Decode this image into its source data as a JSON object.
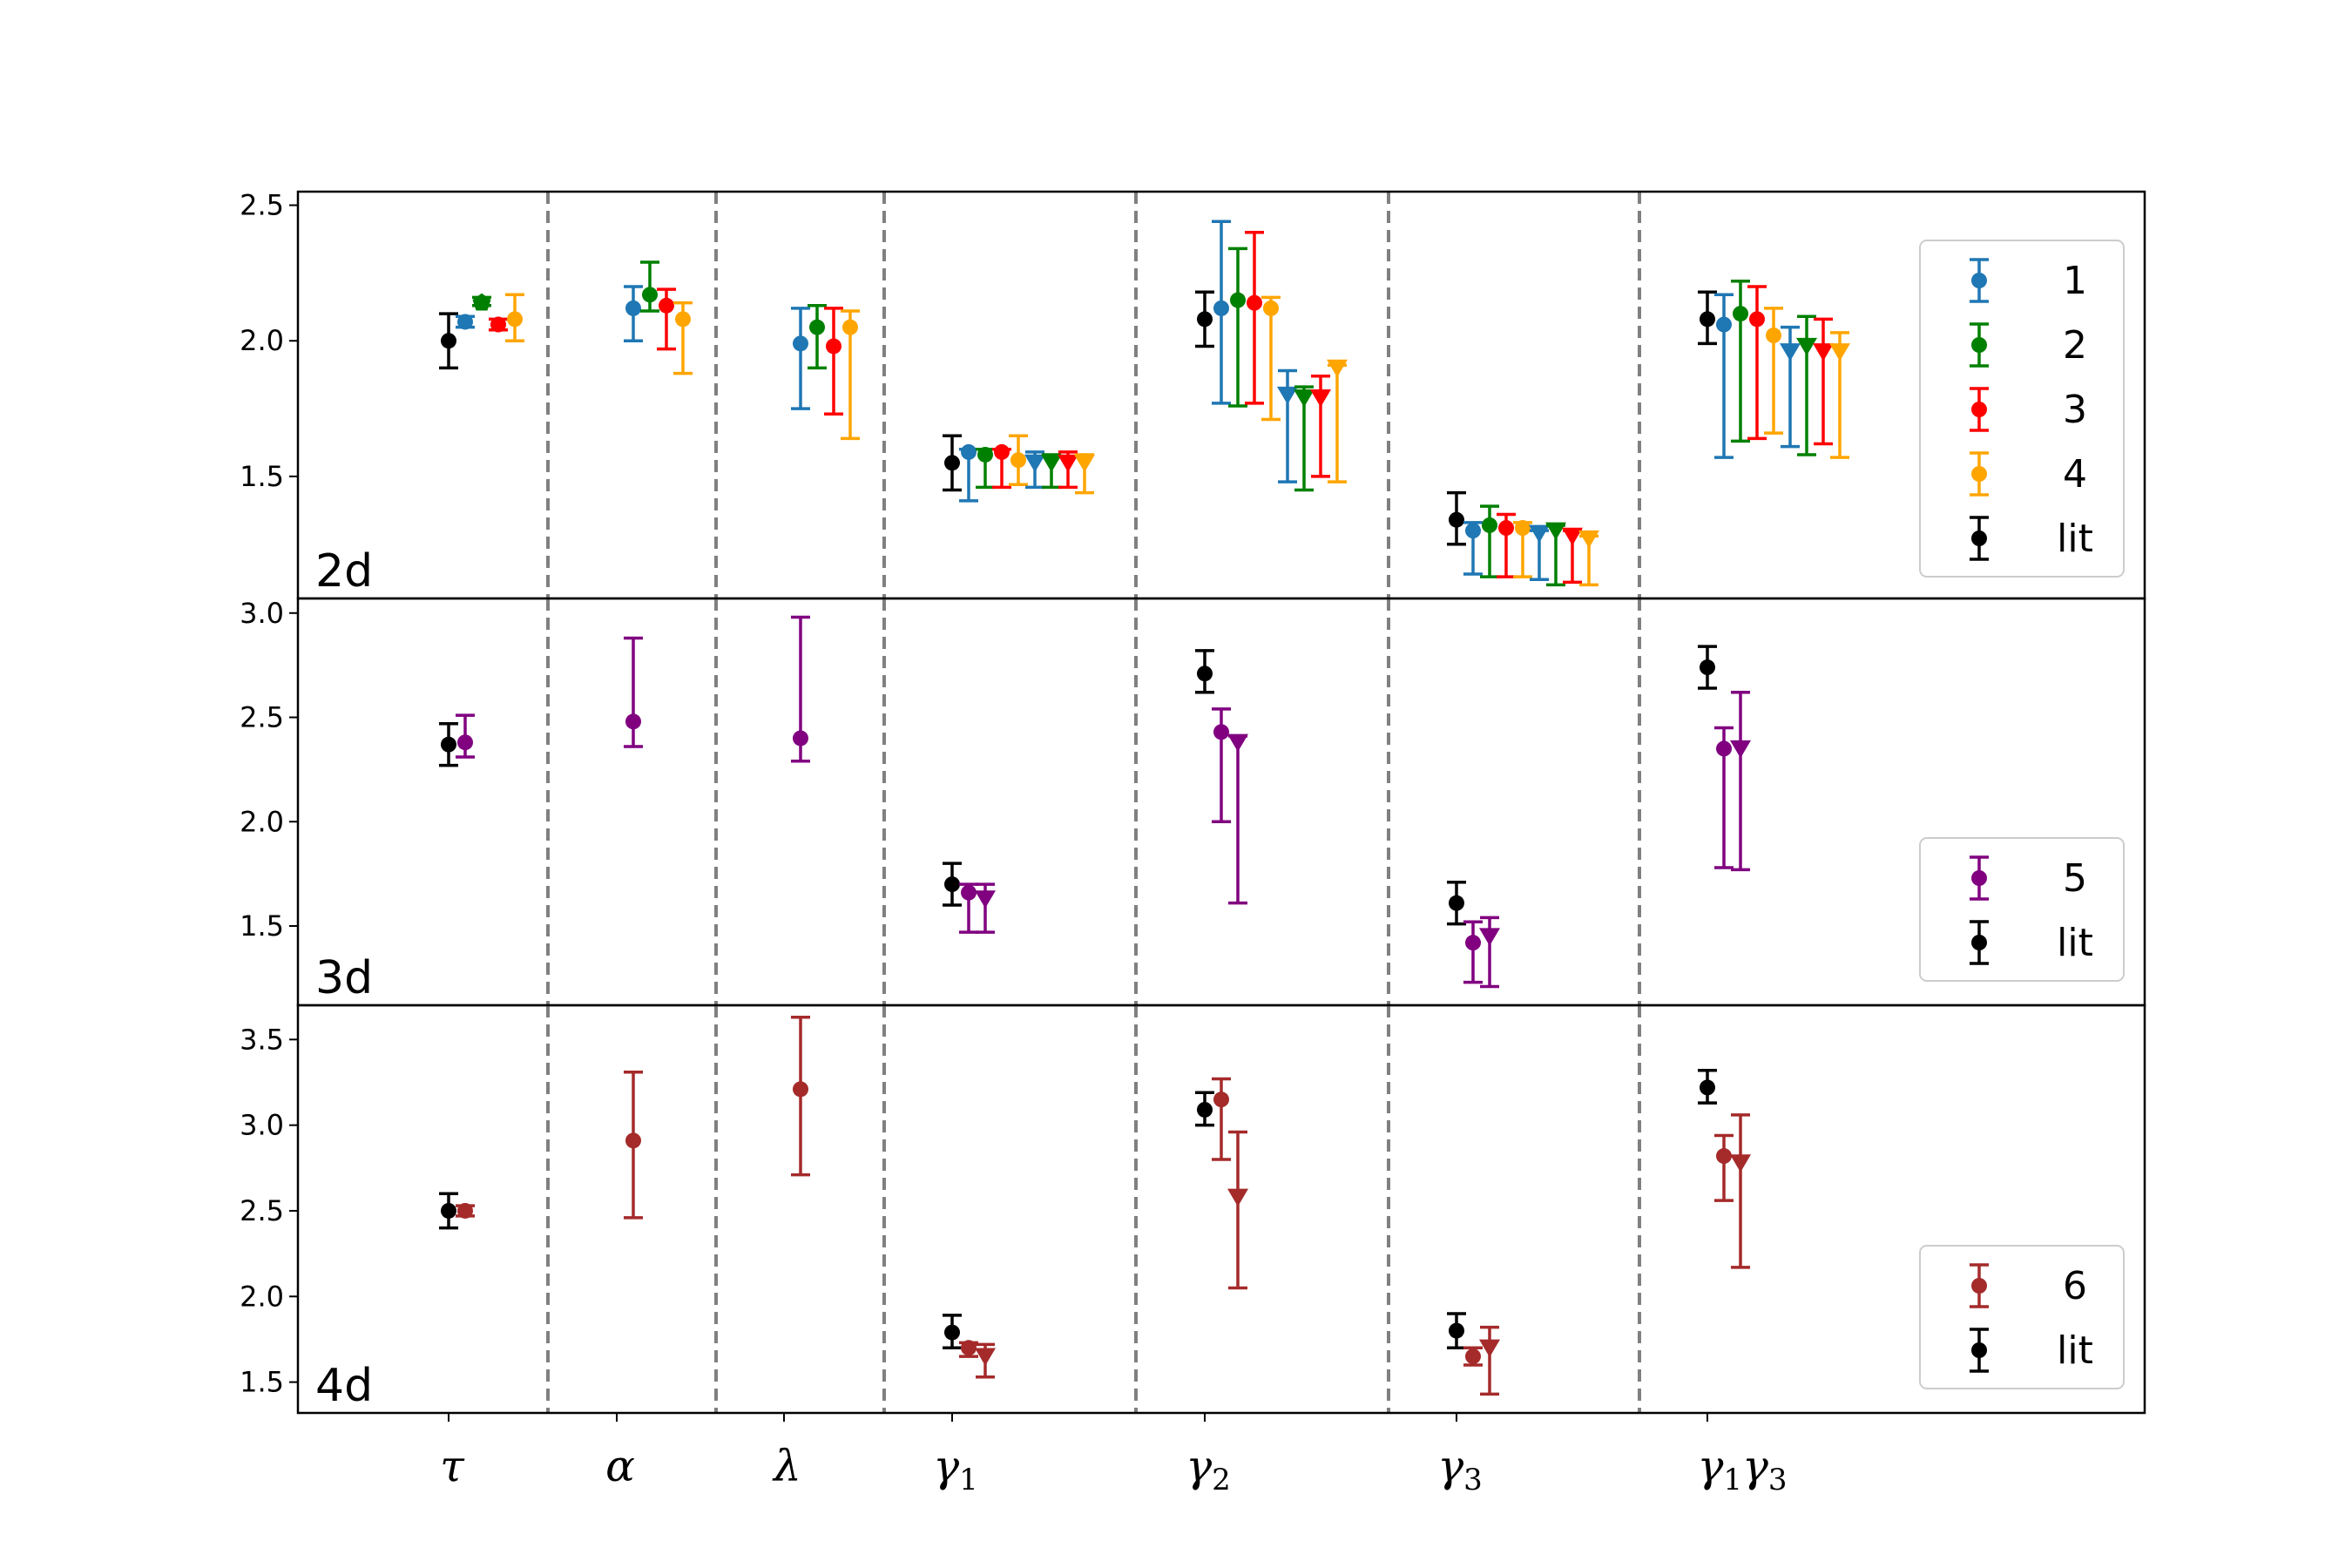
{
  "chart_data": {
    "type": "scatter",
    "x_categories": [
      {
        "symbol": "τ",
        "sub": ""
      },
      {
        "symbol": "α",
        "sub": ""
      },
      {
        "symbol": "λ",
        "sub": ""
      },
      {
        "symbol": "γ",
        "sub": "1"
      },
      {
        "symbol": "γ",
        "sub": "2"
      },
      {
        "symbol": "γ",
        "sub": "3"
      },
      {
        "symbol": "γ",
        "sub": "1",
        "symbol2": "γ",
        "sub2": "3"
      }
    ],
    "grid": false,
    "separators": "dashed vertical lines between categories",
    "colors": {
      "1": "#1f77b4",
      "2": "#008000",
      "3": "#ff0000",
      "4": "#ffa500",
      "5": "#800080",
      "6": "#a52a2a",
      "lit": "#000000"
    },
    "panels": [
      {
        "label": "2d",
        "ylim": [
          1.05,
          2.55
        ],
        "yticks": [
          "1.5",
          "2.0",
          "2.5"
        ],
        "legend_placement": "right",
        "legend": [
          {
            "key": "1",
            "label": "1"
          },
          {
            "key": "2",
            "label": "2"
          },
          {
            "key": "3",
            "label": "3"
          },
          {
            "key": "4",
            "label": "4"
          },
          {
            "key": "lit",
            "label": "lit"
          }
        ],
        "points": [
          {
            "s": "lit",
            "cat": 0,
            "o": 0,
            "y": 2.0,
            "lo": 1.9,
            "hi": 2.1,
            "m": "o"
          },
          {
            "s": "1",
            "cat": 0,
            "o": 1,
            "y": 2.07,
            "lo": 2.05,
            "hi": 2.09,
            "m": "o"
          },
          {
            "s": "2",
            "cat": 0,
            "o": 2,
            "y": 2.14,
            "lo": 2.13,
            "hi": 2.16,
            "m": "p"
          },
          {
            "s": "3",
            "cat": 0,
            "o": 3,
            "y": 2.06,
            "lo": 2.04,
            "hi": 2.08,
            "m": "o"
          },
          {
            "s": "4",
            "cat": 0,
            "o": 4,
            "y": 2.08,
            "lo": 2.0,
            "hi": 2.17,
            "m": "o"
          },
          {
            "s": "1",
            "cat": 1,
            "o": 1,
            "y": 2.12,
            "lo": 2.0,
            "hi": 2.2,
            "m": "o"
          },
          {
            "s": "2",
            "cat": 1,
            "o": 2,
            "y": 2.17,
            "lo": 2.11,
            "hi": 2.29,
            "m": "o"
          },
          {
            "s": "3",
            "cat": 1,
            "o": 3,
            "y": 2.13,
            "lo": 1.97,
            "hi": 2.19,
            "m": "o"
          },
          {
            "s": "4",
            "cat": 1,
            "o": 4,
            "y": 2.08,
            "lo": 1.88,
            "hi": 2.14,
            "m": "o"
          },
          {
            "s": "1",
            "cat": 2,
            "o": 1,
            "y": 1.99,
            "lo": 1.75,
            "hi": 2.12,
            "m": "o"
          },
          {
            "s": "2",
            "cat": 2,
            "o": 2,
            "y": 2.05,
            "lo": 1.9,
            "hi": 2.13,
            "m": "o"
          },
          {
            "s": "3",
            "cat": 2,
            "o": 3,
            "y": 1.98,
            "lo": 1.73,
            "hi": 2.12,
            "m": "o"
          },
          {
            "s": "4",
            "cat": 2,
            "o": 4,
            "y": 2.05,
            "lo": 1.64,
            "hi": 2.11,
            "m": "o"
          },
          {
            "s": "lit",
            "cat": 3,
            "o": 0,
            "y": 1.55,
            "lo": 1.45,
            "hi": 1.65,
            "m": "o"
          },
          {
            "s": "1",
            "cat": 3,
            "o": 1,
            "y": 1.59,
            "lo": 1.41,
            "hi": 1.6,
            "m": "o"
          },
          {
            "s": "2",
            "cat": 3,
            "o": 2,
            "y": 1.58,
            "lo": 1.46,
            "hi": 1.6,
            "m": "o"
          },
          {
            "s": "3",
            "cat": 3,
            "o": 3,
            "y": 1.59,
            "lo": 1.46,
            "hi": 1.6,
            "m": "o"
          },
          {
            "s": "4",
            "cat": 3,
            "o": 4,
            "y": 1.56,
            "lo": 1.47,
            "hi": 1.65,
            "m": "o"
          },
          {
            "s": "1",
            "cat": 3,
            "o": 5,
            "y": 1.55,
            "lo": 1.46,
            "hi": 1.59,
            "m": "v"
          },
          {
            "s": "2",
            "cat": 3,
            "o": 6,
            "y": 1.55,
            "lo": 1.46,
            "hi": 1.58,
            "m": "v"
          },
          {
            "s": "3",
            "cat": 3,
            "o": 7,
            "y": 1.55,
            "lo": 1.46,
            "hi": 1.59,
            "m": "v"
          },
          {
            "s": "4",
            "cat": 3,
            "o": 8,
            "y": 1.55,
            "lo": 1.44,
            "hi": 1.58,
            "m": "v"
          },
          {
            "s": "lit",
            "cat": 4,
            "o": 0,
            "y": 2.08,
            "lo": 1.98,
            "hi": 2.18,
            "m": "o"
          },
          {
            "s": "1",
            "cat": 4,
            "o": 1,
            "y": 2.12,
            "lo": 1.77,
            "hi": 2.44,
            "m": "o"
          },
          {
            "s": "2",
            "cat": 4,
            "o": 2,
            "y": 2.15,
            "lo": 1.76,
            "hi": 2.34,
            "m": "o"
          },
          {
            "s": "3",
            "cat": 4,
            "o": 3,
            "y": 2.14,
            "lo": 1.77,
            "hi": 2.4,
            "m": "o"
          },
          {
            "s": "4",
            "cat": 4,
            "o": 4,
            "y": 2.12,
            "lo": 1.71,
            "hi": 2.16,
            "m": "o"
          },
          {
            "s": "1",
            "cat": 4,
            "o": 5,
            "y": 1.8,
            "lo": 1.48,
            "hi": 1.89,
            "m": "v"
          },
          {
            "s": "2",
            "cat": 4,
            "o": 6,
            "y": 1.79,
            "lo": 1.45,
            "hi": 1.83,
            "m": "v"
          },
          {
            "s": "3",
            "cat": 4,
            "o": 7,
            "y": 1.79,
            "lo": 1.5,
            "hi": 1.87,
            "m": "v"
          },
          {
            "s": "4",
            "cat": 4,
            "o": 8,
            "y": 1.9,
            "lo": 1.48,
            "hi": 1.91,
            "m": "v"
          },
          {
            "s": "lit",
            "cat": 5,
            "o": 0,
            "y": 1.34,
            "lo": 1.25,
            "hi": 1.44,
            "m": "o"
          },
          {
            "s": "1",
            "cat": 5,
            "o": 1,
            "y": 1.3,
            "lo": 1.14,
            "hi": 1.33,
            "m": "o"
          },
          {
            "s": "2",
            "cat": 5,
            "o": 2,
            "y": 1.32,
            "lo": 1.13,
            "hi": 1.39,
            "m": "o"
          },
          {
            "s": "3",
            "cat": 5,
            "o": 3,
            "y": 1.31,
            "lo": 1.13,
            "hi": 1.36,
            "m": "o"
          },
          {
            "s": "4",
            "cat": 5,
            "o": 4,
            "y": 1.31,
            "lo": 1.13,
            "hi": 1.33,
            "m": "o"
          },
          {
            "s": "1",
            "cat": 5,
            "o": 5,
            "y": 1.29,
            "lo": 1.12,
            "hi": 1.3,
            "m": "v"
          },
          {
            "s": "2",
            "cat": 5,
            "o": 6,
            "y": 1.3,
            "lo": 1.1,
            "hi": 1.32,
            "m": "v"
          },
          {
            "s": "3",
            "cat": 5,
            "o": 7,
            "y": 1.28,
            "lo": 1.11,
            "hi": 1.3,
            "m": "v"
          },
          {
            "s": "4",
            "cat": 5,
            "o": 8,
            "y": 1.27,
            "lo": 1.1,
            "hi": 1.28,
            "m": "v"
          },
          {
            "s": "lit",
            "cat": 6,
            "o": 0,
            "y": 2.08,
            "lo": 1.99,
            "hi": 2.18,
            "m": "o"
          },
          {
            "s": "1",
            "cat": 6,
            "o": 1,
            "y": 2.06,
            "lo": 1.57,
            "hi": 2.17,
            "m": "o"
          },
          {
            "s": "2",
            "cat": 6,
            "o": 2,
            "y": 2.1,
            "lo": 1.63,
            "hi": 2.22,
            "m": "o"
          },
          {
            "s": "3",
            "cat": 6,
            "o": 3,
            "y": 2.08,
            "lo": 1.64,
            "hi": 2.2,
            "m": "o"
          },
          {
            "s": "4",
            "cat": 6,
            "o": 4,
            "y": 2.02,
            "lo": 1.66,
            "hi": 2.12,
            "m": "o"
          },
          {
            "s": "1",
            "cat": 6,
            "o": 5,
            "y": 1.96,
            "lo": 1.61,
            "hi": 2.05,
            "m": "v"
          },
          {
            "s": "2",
            "cat": 6,
            "o": 6,
            "y": 1.98,
            "lo": 1.58,
            "hi": 2.09,
            "m": "v"
          },
          {
            "s": "3",
            "cat": 6,
            "o": 7,
            "y": 1.96,
            "lo": 1.62,
            "hi": 2.08,
            "m": "v"
          },
          {
            "s": "4",
            "cat": 6,
            "o": 8,
            "y": 1.96,
            "lo": 1.57,
            "hi": 2.03,
            "m": "v"
          }
        ]
      },
      {
        "label": "3d",
        "ylim": [
          1.12,
          3.07
        ],
        "yticks": [
          "1.5",
          "2.0",
          "2.5",
          "3.0"
        ],
        "legend_placement": "lower right",
        "legend": [
          {
            "key": "5",
            "label": "5"
          },
          {
            "key": "lit",
            "label": "lit"
          }
        ],
        "points": [
          {
            "s": "lit",
            "cat": 0,
            "o": 0,
            "y": 2.37,
            "lo": 2.27,
            "hi": 2.47,
            "m": "o"
          },
          {
            "s": "5",
            "cat": 0,
            "o": 1,
            "y": 2.38,
            "lo": 2.31,
            "hi": 2.51,
            "m": "o"
          },
          {
            "s": "5",
            "cat": 1,
            "o": 1,
            "y": 2.48,
            "lo": 2.36,
            "hi": 2.88,
            "m": "o"
          },
          {
            "s": "5",
            "cat": 2,
            "o": 1,
            "y": 2.4,
            "lo": 2.29,
            "hi": 2.98,
            "m": "o"
          },
          {
            "s": "lit",
            "cat": 3,
            "o": 0,
            "y": 1.7,
            "lo": 1.6,
            "hi": 1.8,
            "m": "o"
          },
          {
            "s": "5",
            "cat": 3,
            "o": 1,
            "y": 1.66,
            "lo": 1.47,
            "hi": 1.7,
            "m": "o"
          },
          {
            "s": "5",
            "cat": 3,
            "o": 2,
            "y": 1.63,
            "lo": 1.47,
            "hi": 1.7,
            "m": "v"
          },
          {
            "s": "lit",
            "cat": 4,
            "o": 0,
            "y": 2.71,
            "lo": 2.62,
            "hi": 2.82,
            "m": "o"
          },
          {
            "s": "5",
            "cat": 4,
            "o": 1,
            "y": 2.43,
            "lo": 2.0,
            "hi": 2.54,
            "m": "o"
          },
          {
            "s": "5",
            "cat": 4,
            "o": 2,
            "y": 2.38,
            "lo": 1.61,
            "hi": 2.41,
            "m": "v"
          },
          {
            "s": "lit",
            "cat": 5,
            "o": 0,
            "y": 1.61,
            "lo": 1.51,
            "hi": 1.71,
            "m": "o"
          },
          {
            "s": "5",
            "cat": 5,
            "o": 1,
            "y": 1.42,
            "lo": 1.23,
            "hi": 1.52,
            "m": "o"
          },
          {
            "s": "5",
            "cat": 5,
            "o": 2,
            "y": 1.45,
            "lo": 1.21,
            "hi": 1.54,
            "m": "v"
          },
          {
            "s": "lit",
            "cat": 6,
            "o": 0,
            "y": 2.74,
            "lo": 2.64,
            "hi": 2.84,
            "m": "o"
          },
          {
            "s": "5",
            "cat": 6,
            "o": 1,
            "y": 2.35,
            "lo": 1.78,
            "hi": 2.45,
            "m": "o"
          },
          {
            "s": "5",
            "cat": 6,
            "o": 2,
            "y": 2.35,
            "lo": 1.77,
            "hi": 2.62,
            "m": "v"
          }
        ]
      },
      {
        "label": "4d",
        "ylim": [
          1.32,
          3.7
        ],
        "yticks": [
          "1.5",
          "2.0",
          "2.5",
          "3.0",
          "3.5"
        ],
        "legend_placement": "lower right",
        "legend": [
          {
            "key": "6",
            "label": "6"
          },
          {
            "key": "lit",
            "label": "lit"
          }
        ],
        "points": [
          {
            "s": "lit",
            "cat": 0,
            "o": 0,
            "y": 2.5,
            "lo": 2.4,
            "hi": 2.6,
            "m": "o"
          },
          {
            "s": "6",
            "cat": 0,
            "o": 1,
            "y": 2.5,
            "lo": 2.47,
            "hi": 2.53,
            "m": "o"
          },
          {
            "s": "6",
            "cat": 1,
            "o": 1,
            "y": 2.91,
            "lo": 2.46,
            "hi": 3.31,
            "m": "o"
          },
          {
            "s": "6",
            "cat": 2,
            "o": 1,
            "y": 3.21,
            "lo": 2.71,
            "hi": 3.63,
            "m": "o"
          },
          {
            "s": "lit",
            "cat": 3,
            "o": 0,
            "y": 1.79,
            "lo": 1.7,
            "hi": 1.89,
            "m": "o"
          },
          {
            "s": "6",
            "cat": 3,
            "o": 1,
            "y": 1.7,
            "lo": 1.65,
            "hi": 1.73,
            "m": "o"
          },
          {
            "s": "6",
            "cat": 3,
            "o": 2,
            "y": 1.65,
            "lo": 1.53,
            "hi": 1.72,
            "m": "v"
          },
          {
            "s": "lit",
            "cat": 4,
            "o": 0,
            "y": 3.09,
            "lo": 3.0,
            "hi": 3.19,
            "m": "o"
          },
          {
            "s": "6",
            "cat": 4,
            "o": 1,
            "y": 3.15,
            "lo": 2.8,
            "hi": 3.27,
            "m": "o"
          },
          {
            "s": "6",
            "cat": 4,
            "o": 2,
            "y": 2.58,
            "lo": 2.05,
            "hi": 2.96,
            "m": "v"
          },
          {
            "s": "lit",
            "cat": 5,
            "o": 0,
            "y": 1.8,
            "lo": 1.7,
            "hi": 1.9,
            "m": "o"
          },
          {
            "s": "6",
            "cat": 5,
            "o": 1,
            "y": 1.65,
            "lo": 1.6,
            "hi": 1.7,
            "m": "o"
          },
          {
            "s": "6",
            "cat": 5,
            "o": 2,
            "y": 1.7,
            "lo": 1.43,
            "hi": 1.82,
            "m": "v"
          },
          {
            "s": "lit",
            "cat": 6,
            "o": 0,
            "y": 3.22,
            "lo": 3.13,
            "hi": 3.32,
            "m": "o"
          },
          {
            "s": "6",
            "cat": 6,
            "o": 1,
            "y": 2.82,
            "lo": 2.56,
            "hi": 2.94,
            "m": "o"
          },
          {
            "s": "6",
            "cat": 6,
            "o": 2,
            "y": 2.78,
            "lo": 2.17,
            "hi": 3.06,
            "m": "v"
          }
        ]
      }
    ]
  }
}
